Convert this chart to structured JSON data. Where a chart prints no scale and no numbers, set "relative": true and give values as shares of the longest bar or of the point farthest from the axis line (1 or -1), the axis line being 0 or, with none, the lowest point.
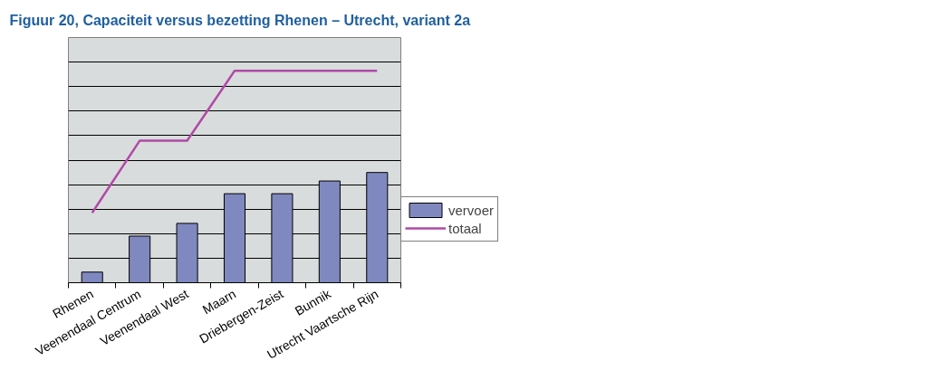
{
  "chart_data": {
    "type": "bar",
    "title": "Figuur 20, Capaciteit versus bezetting Rhenen – Utrecht, variant 2a",
    "categories": [
      "Rhenen",
      "Veenendaal Centrum",
      "Veenendaal West",
      "Maarn",
      "Driebergen-Zeist",
      "Bunnik",
      "Utrecht Vaartsche Rijn"
    ],
    "relative": true,
    "grid": "y",
    "legend": "right",
    "series": [
      {
        "name": "vervoer",
        "color": "#8088c0",
        "values": [
          0.05,
          0.22,
          0.28,
          0.42,
          0.42,
          0.48,
          0.52
        ]
      },
      {
        "name": "totaal",
        "type": "line",
        "color": "#b04aa6",
        "values": [
          0.33,
          0.67,
          0.67,
          1,
          1,
          1,
          1
        ]
      }
    ]
  }
}
